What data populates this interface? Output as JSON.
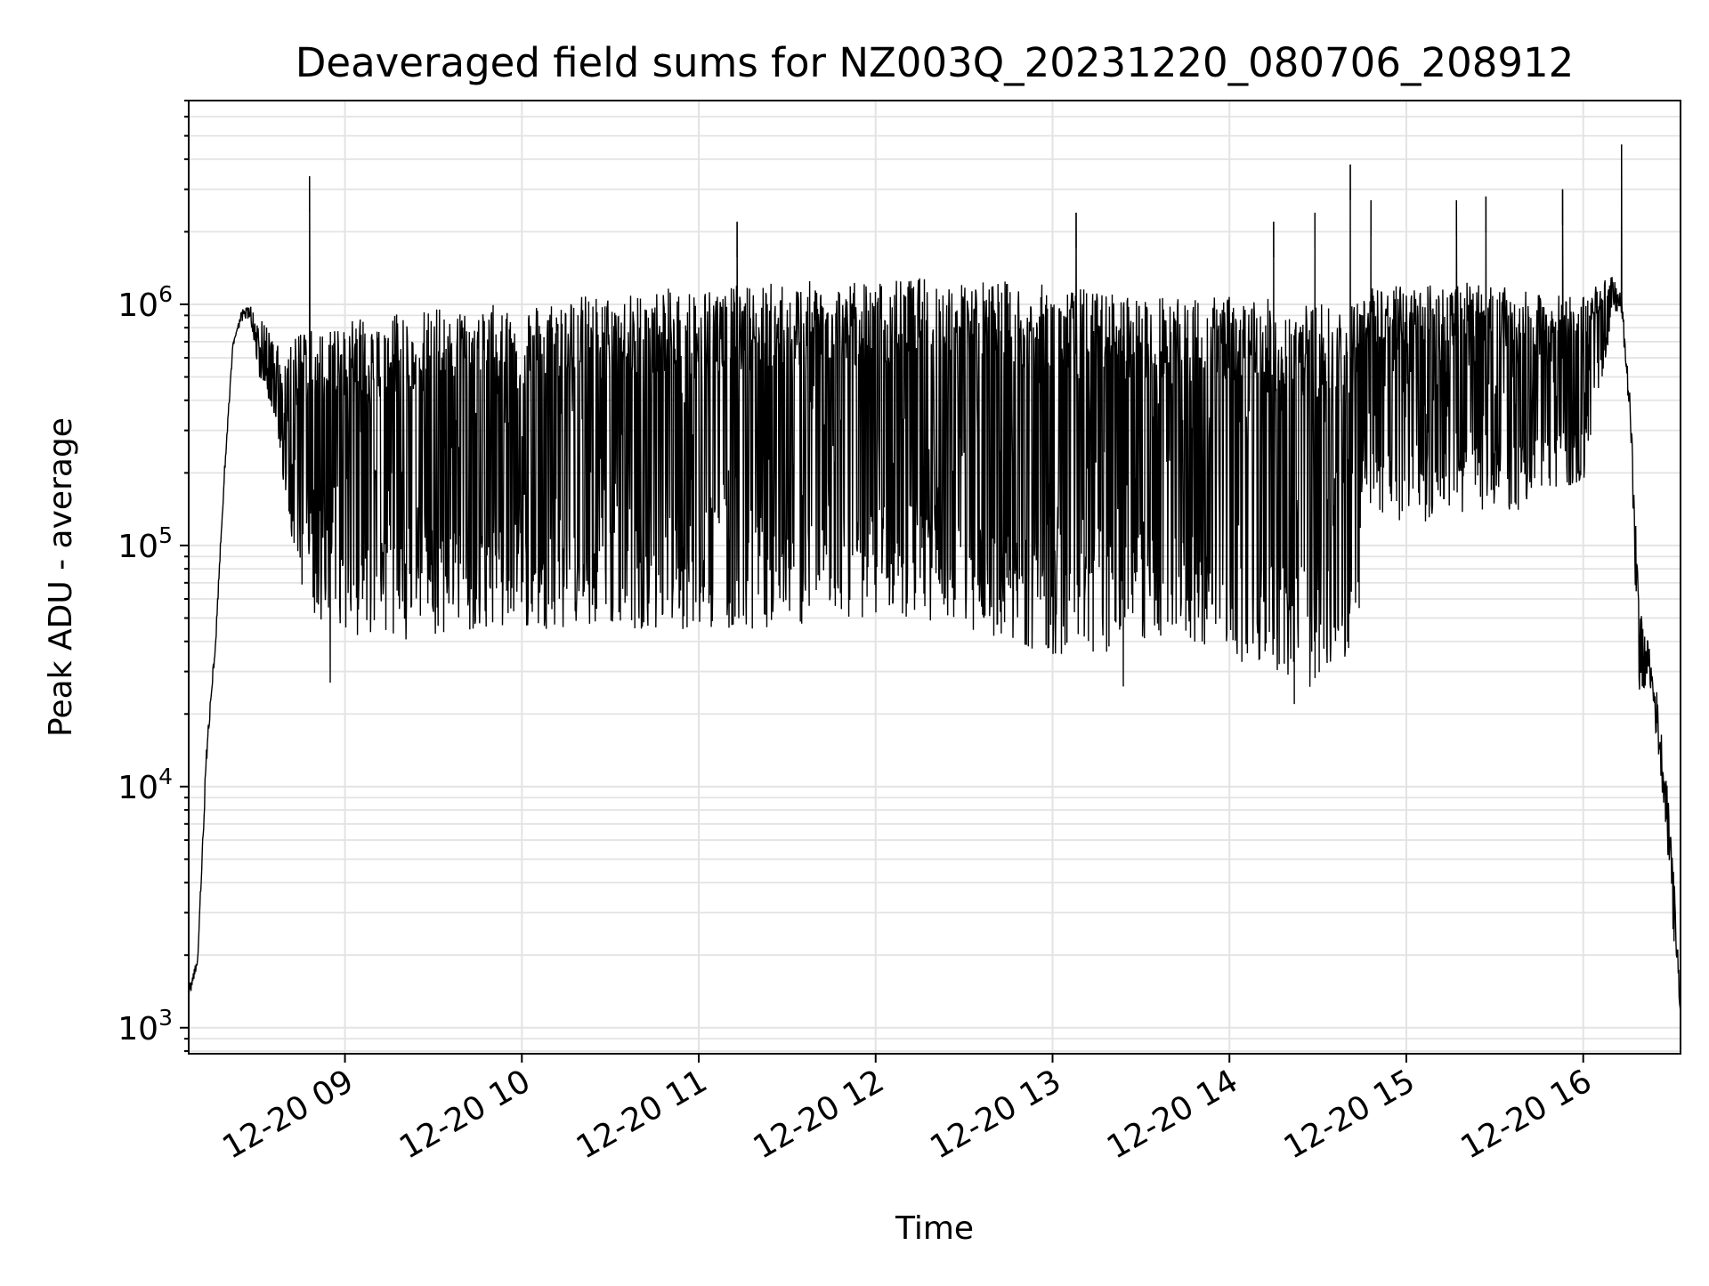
{
  "chart_data": {
    "type": "line",
    "title": "Deaveraged field sums for NZ003Q_20231220_080706_208912",
    "xlabel": "Time",
    "ylabel": "Peak ADU - average",
    "x_type": "datetime",
    "x_range": [
      "2023-12-20 08:07",
      "2023-12-20 16:33"
    ],
    "xlim": [
      "2023-12-20 08:07",
      "2023-12-20 16:33"
    ],
    "y_scale": "log",
    "ylim": [
      780,
      7000000
    ],
    "grid": true,
    "color": "#000000",
    "x_ticks": [
      {
        "value": "2023-12-20 09:00",
        "label": "12-20 09"
      },
      {
        "value": "2023-12-20 10:00",
        "label": "12-20 10"
      },
      {
        "value": "2023-12-20 11:00",
        "label": "12-20 11"
      },
      {
        "value": "2023-12-20 12:00",
        "label": "12-20 12"
      },
      {
        "value": "2023-12-20 13:00",
        "label": "12-20 13"
      },
      {
        "value": "2023-12-20 14:00",
        "label": "12-20 14"
      },
      {
        "value": "2023-12-20 15:00",
        "label": "12-20 15"
      },
      {
        "value": "2023-12-20 16:00",
        "label": "12-20 16"
      }
    ],
    "y_ticks": [
      {
        "value": 1000,
        "base": "10",
        "exp": "3"
      },
      {
        "value": 10000,
        "base": "10",
        "exp": "4"
      },
      {
        "value": 100000,
        "base": "10",
        "exp": "5"
      },
      {
        "value": 1000000,
        "base": "10",
        "exp": "6"
      }
    ],
    "envelope": {
      "x": [
        "2023-12-20 08:07",
        "2023-12-20 08:10",
        "2023-12-20 08:13",
        "2023-12-20 08:16",
        "2023-12-20 08:19",
        "2023-12-20 08:22",
        "2023-12-20 08:25",
        "2023-12-20 08:28",
        "2023-12-20 08:31",
        "2023-12-20 08:34",
        "2023-12-20 08:37",
        "2023-12-20 08:40",
        "2023-12-20 08:43",
        "2023-12-20 08:46",
        "2023-12-20 08:50",
        "2023-12-20 08:55",
        "2023-12-20 09:00",
        "2023-12-20 09:15",
        "2023-12-20 09:30",
        "2023-12-20 09:45",
        "2023-12-20 10:00",
        "2023-12-20 10:15",
        "2023-12-20 10:30",
        "2023-12-20 10:45",
        "2023-12-20 11:00",
        "2023-12-20 11:15",
        "2023-12-20 11:30",
        "2023-12-20 11:45",
        "2023-12-20 12:00",
        "2023-12-20 12:15",
        "2023-12-20 12:30",
        "2023-12-20 12:45",
        "2023-12-20 13:00",
        "2023-12-20 13:15",
        "2023-12-20 13:30",
        "2023-12-20 13:45",
        "2023-12-20 14:00",
        "2023-12-20 14:15",
        "2023-12-20 14:30",
        "2023-12-20 14:42",
        "2023-12-20 14:45",
        "2023-12-20 15:00",
        "2023-12-20 15:15",
        "2023-12-20 15:30",
        "2023-12-20 15:45",
        "2023-12-20 16:00",
        "2023-12-20 16:07",
        "2023-12-20 16:10",
        "2023-12-20 16:13",
        "2023-12-20 16:16",
        "2023-12-20 16:19",
        "2023-12-20 16:22",
        "2023-12-20 16:25",
        "2023-12-20 16:28",
        "2023-12-20 16:31",
        "2023-12-20 16:33"
      ],
      "upper": [
        1500,
        2000,
        15000,
        40000,
        200000,
        700000,
        950000,
        1000000,
        900000,
        800000,
        700000,
        600000,
        750000,
        800000,
        800000,
        800000,
        850000,
        900000,
        950000,
        1000000,
        1000000,
        1100000,
        1100000,
        1150000,
        1200000,
        1200000,
        1250000,
        1250000,
        1250000,
        1300000,
        1300000,
        1250000,
        1200000,
        1150000,
        1100000,
        1050000,
        1100000,
        1050000,
        1000000,
        1000000,
        1200000,
        1200000,
        1250000,
        1200000,
        1100000,
        1100000,
        1300000,
        1300000,
        1100000,
        400000,
        60000,
        40000,
        25000,
        12000,
        4000,
        1200
      ],
      "lower": [
        1300,
        1800,
        12000,
        35000,
        180000,
        650000,
        850000,
        850000,
        500000,
        400000,
        300000,
        150000,
        90000,
        60000,
        50000,
        45000,
        40000,
        40000,
        42000,
        45000,
        45000,
        45000,
        45000,
        45000,
        45000,
        45000,
        45000,
        50000,
        50000,
        50000,
        45000,
        40000,
        35000,
        35000,
        40000,
        40000,
        35000,
        28000,
        25000,
        30000,
        150000,
        120000,
        130000,
        130000,
        150000,
        180000,
        500000,
        900000,
        900000,
        300000,
        20000,
        30000,
        15000,
        7000,
        2000,
        1100
      ]
    },
    "spikes": [
      {
        "x": "2023-12-20 08:48",
        "y": 3400000
      },
      {
        "x": "2023-12-20 11:13",
        "y": 2200000
      },
      {
        "x": "2023-12-20 13:08",
        "y": 2400000
      },
      {
        "x": "2023-12-20 14:15",
        "y": 2200000
      },
      {
        "x": "2023-12-20 14:29",
        "y": 2400000
      },
      {
        "x": "2023-12-20 14:41",
        "y": 3800000
      },
      {
        "x": "2023-12-20 14:48",
        "y": 2700000
      },
      {
        "x": "2023-12-20 15:17",
        "y": 2700000
      },
      {
        "x": "2023-12-20 15:27",
        "y": 2800000
      },
      {
        "x": "2023-12-20 15:53",
        "y": 3000000
      },
      {
        "x": "2023-12-20 16:13",
        "y": 4600000
      }
    ],
    "dips": [
      {
        "x": "2023-12-20 08:55",
        "y": 27000
      },
      {
        "x": "2023-12-20 14:22",
        "y": 22000
      },
      {
        "x": "2023-12-20 13:24",
        "y": 26000
      },
      {
        "x": "2023-12-20 14:44",
        "y": 55000
      }
    ]
  }
}
